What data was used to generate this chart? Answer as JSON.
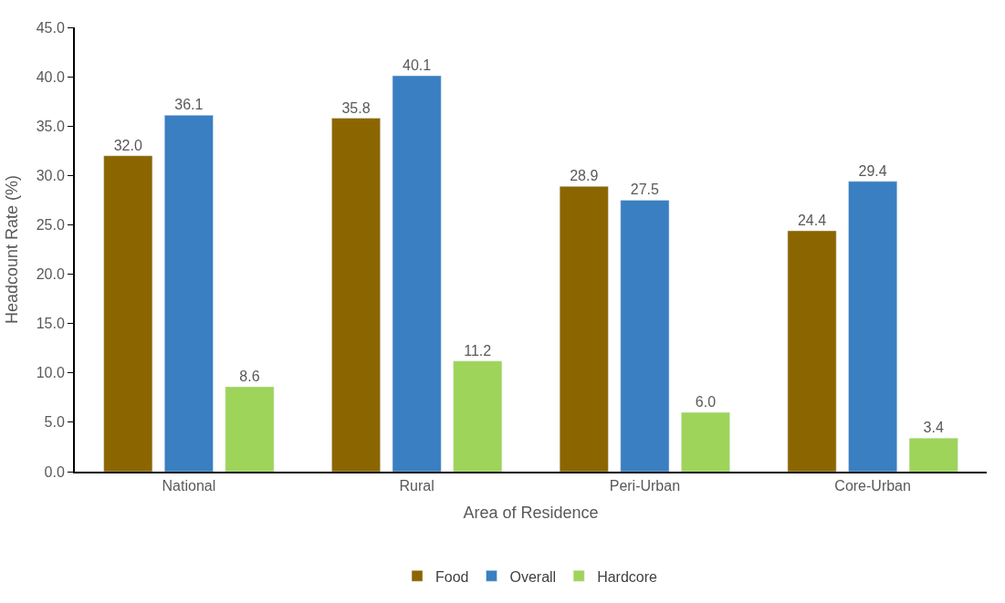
{
  "chart_data": {
    "type": "bar",
    "xlabel": "Area of Residence",
    "ylabel": "Headcount Rate (%)",
    "categories": [
      "National",
      "Rural",
      "Peri-Urban",
      "Core-Urban"
    ],
    "series": [
      {
        "name": "Food",
        "color": "#8b6600",
        "values": [
          32.0,
          35.8,
          28.9,
          24.4
        ],
        "value_labels": [
          "32.0",
          "35.8",
          "28.9",
          "24.4"
        ]
      },
      {
        "name": "Overall",
        "color": "#3a7fc1",
        "values": [
          36.1,
          40.1,
          27.5,
          29.4
        ],
        "value_labels": [
          "36.1",
          "40.1",
          "27.5",
          "29.4"
        ]
      },
      {
        "name": "Hardcore",
        "color": "#9ed45a",
        "values": [
          8.6,
          11.2,
          6.0,
          3.4
        ],
        "value_labels": [
          "8.6",
          "11.2",
          "6.0",
          "3.4"
        ]
      }
    ],
    "ylim": [
      0,
      45
    ],
    "yticks": [
      {
        "value": 0,
        "label": "0.0"
      },
      {
        "value": 5,
        "label": "5.0"
      },
      {
        "value": 10,
        "label": "10.0"
      },
      {
        "value": 15,
        "label": "15.0"
      },
      {
        "value": 20,
        "label": "20.0"
      },
      {
        "value": 25,
        "label": "25.0"
      },
      {
        "value": 30,
        "label": "30.0"
      },
      {
        "value": 35,
        "label": "35.0"
      },
      {
        "value": 40,
        "label": "40.0"
      },
      {
        "value": 45,
        "label": "45.0"
      }
    ],
    "legend": "bottom"
  }
}
